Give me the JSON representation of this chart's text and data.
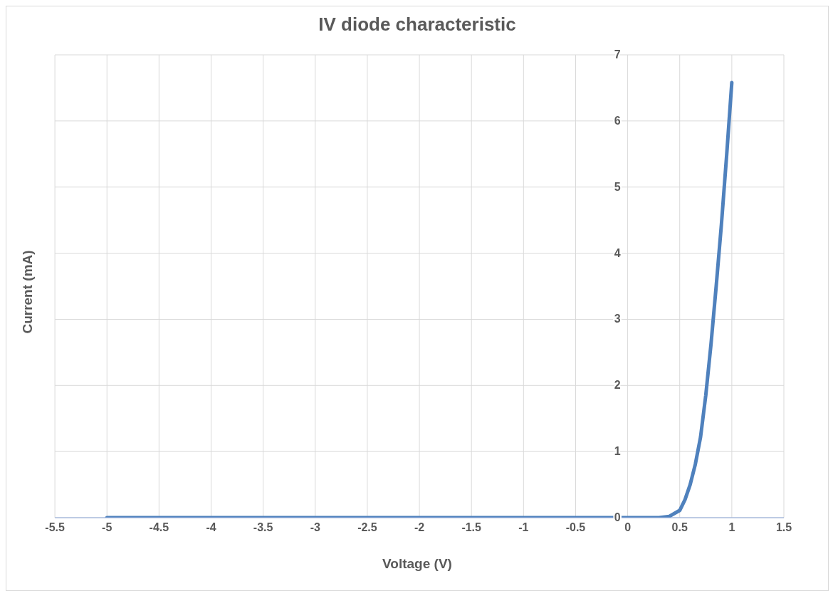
{
  "chart_data": {
    "type": "line",
    "title": "IV diode characteristic",
    "xlabel": "Voltage (V)",
    "ylabel": "Current (mA)",
    "x": [
      -5,
      -4,
      -3,
      -2,
      -1,
      0,
      0.3,
      0.4,
      0.5,
      0.55,
      0.6,
      0.65,
      0.7,
      0.75,
      0.8,
      0.85,
      0.9,
      0.95,
      1
    ],
    "series": [
      {
        "color": "#4f81bd",
        "values": [
          0,
          0,
          0,
          0,
          0,
          0,
          0,
          0.02,
          0.11,
          0.27,
          0.5,
          0.81,
          1.22,
          1.85,
          2.62,
          3.5,
          4.43,
          5.47,
          6.58
        ]
      }
    ],
    "xlim": [
      -5.5,
      1.5
    ],
    "xticks": [
      -5.5,
      -5,
      -4.5,
      -4,
      -3.5,
      -3,
      -2.5,
      -2,
      -1.5,
      -1,
      -0.5,
      0,
      0.5,
      1,
      1.5
    ],
    "ylim": [
      0,
      7
    ],
    "yticks": [
      0,
      1,
      2,
      3,
      4,
      5,
      6,
      7
    ],
    "grid": true,
    "marker": "none",
    "line_style": "solid"
  }
}
